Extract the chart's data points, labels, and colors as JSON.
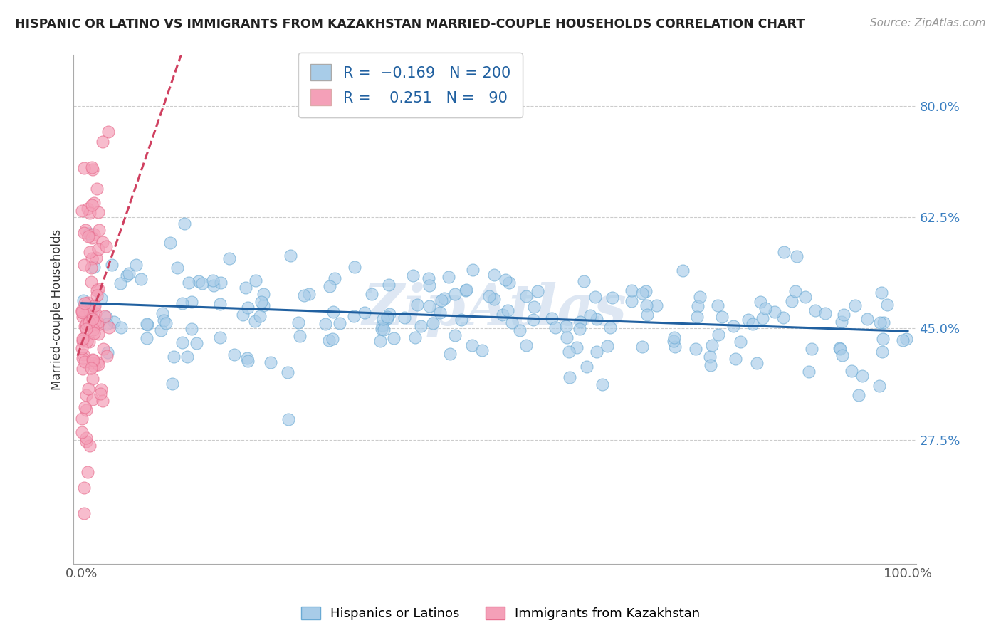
{
  "title": "HISPANIC OR LATINO VS IMMIGRANTS FROM KAZAKHSTAN MARRIED-COUPLE HOUSEHOLDS CORRELATION CHART",
  "source": "Source: ZipAtlas.com",
  "ylabel": "Married-couple Households",
  "xlabel": "",
  "xlim": [
    -0.01,
    1.01
  ],
  "ylim": [
    0.08,
    0.88
  ],
  "yticks": [
    0.275,
    0.45,
    0.625,
    0.8
  ],
  "ytick_labels": [
    "27.5%",
    "45.0%",
    "62.5%",
    "80.0%"
  ],
  "xtick_labels": [
    "0.0%",
    "100.0%"
  ],
  "blue_R": -0.169,
  "blue_N": 200,
  "pink_R": 0.251,
  "pink_N": 90,
  "blue_color": "#a8cce8",
  "pink_color": "#f4a0b8",
  "blue_edge_color": "#6aaad4",
  "pink_edge_color": "#e87090",
  "blue_trend_color": "#2060a0",
  "pink_trend_color": "#d04060",
  "grid_color": "#cccccc",
  "watermark": "ZipAtlas",
  "bottom_legend_blue": "Hispanics or Latinos",
  "bottom_legend_pink": "Immigrants from Kazakhstan"
}
